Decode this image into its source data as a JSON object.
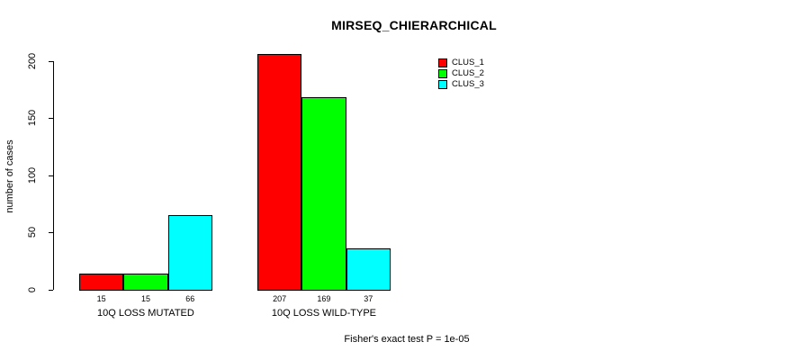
{
  "chart_data": {
    "type": "bar",
    "title": "MIRSEQ_CHIERARCHICAL",
    "ylabel": "number of cases",
    "xlabel": "",
    "categories": [
      "10Q LOSS MUTATED",
      "10Q LOSS WILD-TYPE"
    ],
    "series": [
      {
        "name": "CLUS_1",
        "color": "#FF0000",
        "values": [
          15,
          207
        ]
      },
      {
        "name": "CLUS_2",
        "color": "#00FF00",
        "values": [
          15,
          169
        ]
      },
      {
        "name": "CLUS_3",
        "color": "#00FFFF",
        "values": [
          66,
          37
        ]
      }
    ],
    "bar_value_labels": [
      [
        15,
        15,
        66
      ],
      [
        207,
        169,
        37
      ]
    ],
    "yticks": [
      0,
      50,
      100,
      150,
      200
    ],
    "ylim": [
      0,
      207
    ],
    "grid": false,
    "legend_position": "top-right",
    "legend_entries": [
      "CLUS_1",
      "CLUS_2",
      "CLUS_3"
    ],
    "annotation": "Fisher's exact test P = 1e-05",
    "colors": {
      "background": "#FFFFFF",
      "text": "#000000",
      "bar_border": "#000000",
      "axis": "#000000"
    }
  }
}
